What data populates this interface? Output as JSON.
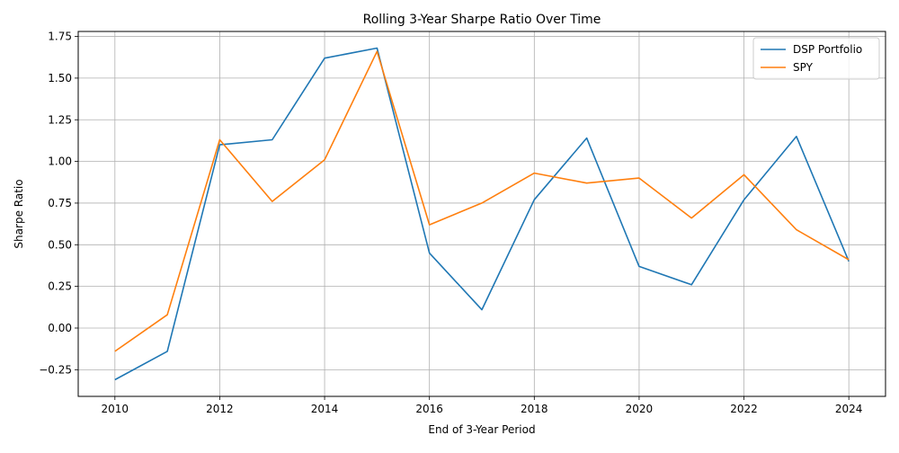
{
  "chart_data": {
    "type": "line",
    "title": "Rolling 3-Year Sharpe Ratio Over Time",
    "xlabel": "End of 3-Year Period",
    "ylabel": "Sharpe Ratio",
    "x": [
      2010,
      2011,
      2012,
      2013,
      2014,
      2015,
      2016,
      2017,
      2018,
      2019,
      2020,
      2021,
      2022,
      2023,
      2024
    ],
    "series": [
      {
        "name": "DSP Portfolio",
        "color": "#1f77b4",
        "values": [
          -0.31,
          -0.14,
          1.1,
          1.13,
          1.62,
          1.68,
          0.45,
          0.11,
          0.77,
          1.14,
          0.37,
          0.26,
          0.77,
          1.15,
          0.4
        ]
      },
      {
        "name": "SPY",
        "color": "#ff7f0e",
        "values": [
          -0.14,
          0.08,
          1.13,
          0.76,
          1.01,
          1.66,
          0.62,
          0.75,
          0.93,
          0.87,
          0.9,
          0.66,
          0.92,
          0.59,
          0.41
        ]
      }
    ],
    "xlim": [
      2009.3,
      2024.7
    ],
    "ylim": [
      -0.41,
      1.78
    ],
    "x_ticks": [
      2010,
      2012,
      2014,
      2016,
      2018,
      2020,
      2022,
      2024
    ],
    "y_ticks": [
      -0.25,
      0.0,
      0.25,
      0.5,
      0.75,
      1.0,
      1.25,
      1.5,
      1.75
    ],
    "x_tick_labels": [
      "2010",
      "2012",
      "2014",
      "2016",
      "2018",
      "2020",
      "2022",
      "2024"
    ],
    "y_tick_labels": [
      "−0.25",
      "0.00",
      "0.25",
      "0.50",
      "0.75",
      "1.00",
      "1.25",
      "1.50",
      "1.75"
    ],
    "grid": true,
    "legend_position": "top-right",
    "grid_color": "#b0b0b0"
  }
}
